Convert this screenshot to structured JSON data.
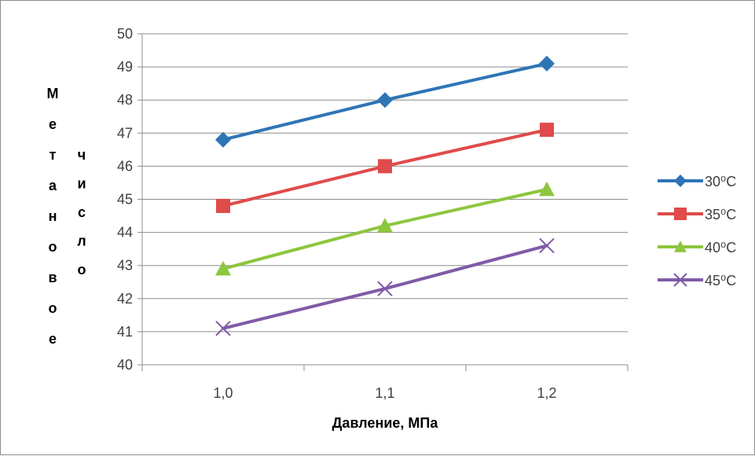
{
  "chart_data": {
    "type": "line",
    "title": "",
    "xlabel": "Давление, МПа",
    "ylabel": "Метановое число",
    "ylabel_col1": [
      "М",
      "е",
      "т",
      "а",
      "н",
      "о",
      "в",
      "о",
      "е"
    ],
    "ylabel_col2": [
      "ч",
      "и",
      "с",
      "л",
      "о"
    ],
    "categories": [
      "1,0",
      "1,1",
      "1,2"
    ],
    "ylim": [
      40,
      50
    ],
    "yticks": [
      40,
      41,
      42,
      43,
      44,
      45,
      46,
      47,
      48,
      49,
      50
    ],
    "grid": true,
    "legend_position": "right",
    "series": [
      {
        "name": "30⁰С",
        "values": [
          46.8,
          48.0,
          49.1
        ],
        "color": "#2E75B6",
        "marker": "diamond"
      },
      {
        "name": "35⁰С",
        "values": [
          44.8,
          46.0,
          47.1
        ],
        "color": "#E04B4B",
        "marker": "square"
      },
      {
        "name": "40⁰С",
        "values": [
          42.9,
          44.2,
          45.3
        ],
        "color": "#8DC63F",
        "marker": "triangle"
      },
      {
        "name": "45⁰С",
        "values": [
          41.1,
          42.3,
          43.6
        ],
        "color": "#7F5BA6",
        "marker": "x"
      }
    ]
  }
}
